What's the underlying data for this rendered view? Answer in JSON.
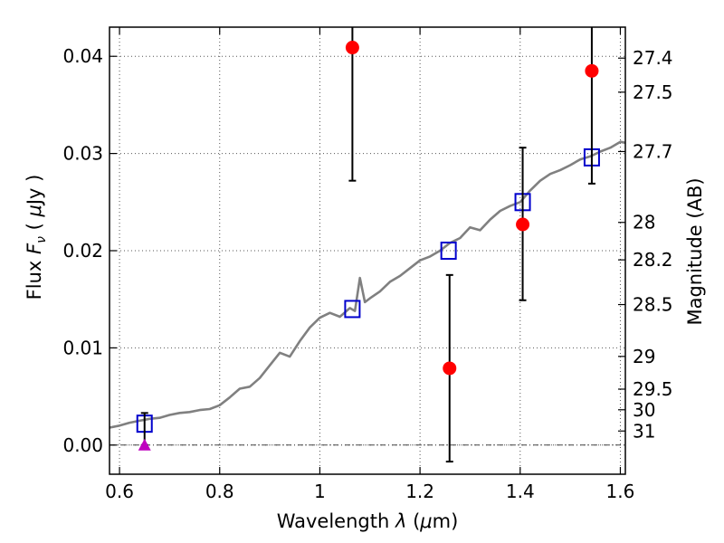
{
  "chart_data": {
    "type": "scatter",
    "xlabel_parts": [
      "Wavelength ",
      "λ",
      " (",
      "μ",
      "m)"
    ],
    "ylabel_parts": [
      "Flux ",
      "F",
      "ν",
      " ( ",
      "μ",
      "Jy )"
    ],
    "y2label": "Magnitude (AB)",
    "xlim": [
      0.58,
      1.61
    ],
    "ylim": [
      -0.003,
      0.043
    ],
    "grid": true,
    "x_ticks": [
      0.6,
      0.8,
      1.0,
      1.2,
      1.4,
      1.6
    ],
    "x_tick_labels": [
      "0.6",
      "0.8",
      "1",
      "1.2",
      "1.4",
      "1.6"
    ],
    "y_ticks": [
      0.0,
      0.01,
      0.02,
      0.03,
      0.04
    ],
    "y_tick_labels": [
      "0.00",
      "0.01",
      "0.02",
      "0.03",
      "0.04"
    ],
    "y2_ticks": [
      27.4,
      27.5,
      27.7,
      28,
      28.2,
      28.5,
      29,
      29.5,
      30,
      31
    ],
    "y2_tick_labels": [
      "27.4",
      "27.5",
      "27.7",
      "28",
      "28.2",
      "28.5",
      "29",
      "29.5",
      "30",
      "31"
    ],
    "zero_line": 0.0,
    "model_spectrum": {
      "x": [
        0.58,
        0.6,
        0.62,
        0.64,
        0.66,
        0.68,
        0.7,
        0.72,
        0.74,
        0.76,
        0.78,
        0.8,
        0.82,
        0.84,
        0.86,
        0.88,
        0.9,
        0.92,
        0.94,
        0.96,
        0.98,
        1.0,
        1.02,
        1.04,
        1.06,
        1.07,
        1.08,
        1.09,
        1.1,
        1.12,
        1.14,
        1.16,
        1.18,
        1.2,
        1.22,
        1.24,
        1.26,
        1.28,
        1.3,
        1.32,
        1.34,
        1.36,
        1.38,
        1.4,
        1.42,
        1.44,
        1.46,
        1.48,
        1.5,
        1.52,
        1.54,
        1.56,
        1.58,
        1.6,
        1.61
      ],
      "y": [
        0.0018,
        0.002,
        0.0023,
        0.0025,
        0.0027,
        0.0028,
        0.0031,
        0.0033,
        0.0034,
        0.0036,
        0.0037,
        0.0041,
        0.0049,
        0.0058,
        0.006,
        0.0069,
        0.0082,
        0.0095,
        0.0091,
        0.0107,
        0.0121,
        0.0131,
        0.0136,
        0.0132,
        0.0141,
        0.0138,
        0.0172,
        0.0147,
        0.0151,
        0.0158,
        0.0168,
        0.0174,
        0.0182,
        0.019,
        0.0194,
        0.02,
        0.0208,
        0.0213,
        0.0224,
        0.0221,
        0.0232,
        0.0241,
        0.0246,
        0.025,
        0.0262,
        0.0272,
        0.0279,
        0.0283,
        0.0288,
        0.0294,
        0.0297,
        0.0302,
        0.0306,
        0.0312,
        0.0311
      ]
    },
    "series": [
      {
        "marker": "square-open",
        "color": "#0000cc",
        "x": [
          0.65,
          1.065,
          1.257,
          1.405,
          1.543
        ],
        "y": [
          0.0022,
          0.014,
          0.02,
          0.025,
          0.0296
        ]
      },
      {
        "marker": "circle",
        "color": "#ff0000",
        "x": [
          1.065,
          1.259,
          1.405,
          1.543
        ],
        "y": [
          0.0409,
          0.0079,
          0.0227,
          0.0385
        ],
        "yerr_low": [
          0.0272,
          -0.0017,
          0.0149,
          0.0269
        ],
        "yerr_high": [
          0.0438,
          0.0175,
          0.0306,
          0.0438
        ]
      },
      {
        "marker": "triangle",
        "color": "#bf00bf",
        "x": [
          0.65
        ],
        "y": [
          0.0
        ],
        "yerr_low": [
          0.0
        ],
        "yerr_high": [
          0.0033
        ]
      }
    ]
  }
}
